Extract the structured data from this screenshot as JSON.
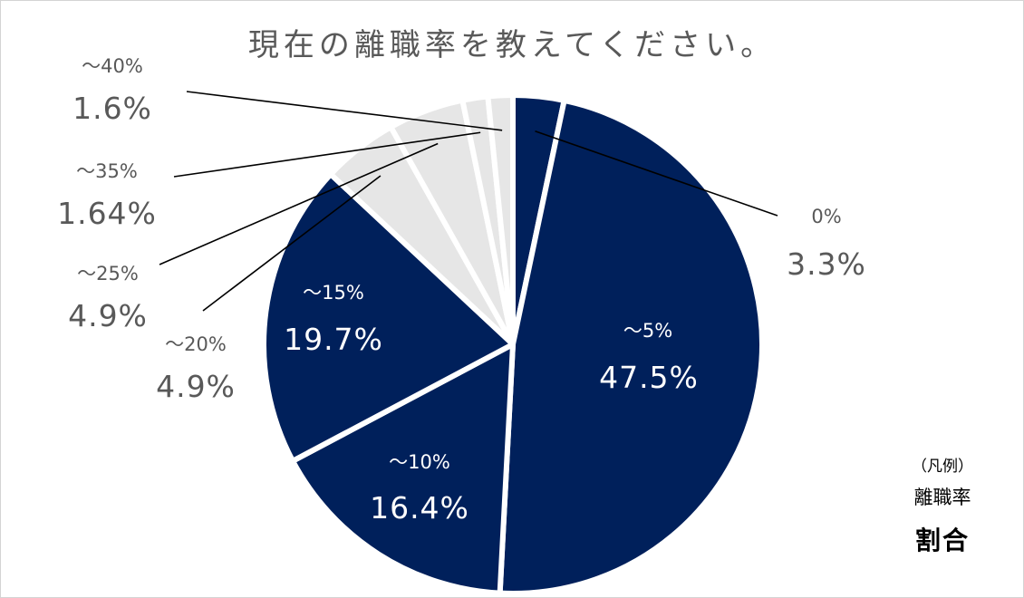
{
  "title": "現在の離職率を教えてください。",
  "legend": {
    "title": "（凡例）",
    "name_label": "離職率",
    "value_label": "割合"
  },
  "colors": {
    "dark": "#00205b",
    "light": "#e6e6e6",
    "outer_text": "#595959",
    "inner_text": "#ffffff",
    "leader": "#000000"
  },
  "chart_data": {
    "type": "pie",
    "title": "現在の離職率を教えてください。",
    "categories": [
      "0%",
      "～5%",
      "～10%",
      "～15%",
      "～20%",
      "～25%",
      "～35%",
      "～40%"
    ],
    "values": [
      3.3,
      47.5,
      16.4,
      19.7,
      4.9,
      4.9,
      1.64,
      1.6
    ],
    "value_labels": [
      "3.3%",
      "47.5%",
      "16.4%",
      "19.7%",
      "4.9%",
      "4.9%",
      "1.64%",
      "1.6%"
    ],
    "slice_colors": [
      "dark",
      "dark",
      "dark",
      "dark",
      "light",
      "light",
      "light",
      "light"
    ],
    "label_placement": [
      "outside",
      "inside",
      "inside",
      "inside",
      "outside",
      "outside",
      "outside",
      "outside"
    ],
    "start": "12 o'clock",
    "direction": "clockwise",
    "legend_position": "bottom-right"
  }
}
